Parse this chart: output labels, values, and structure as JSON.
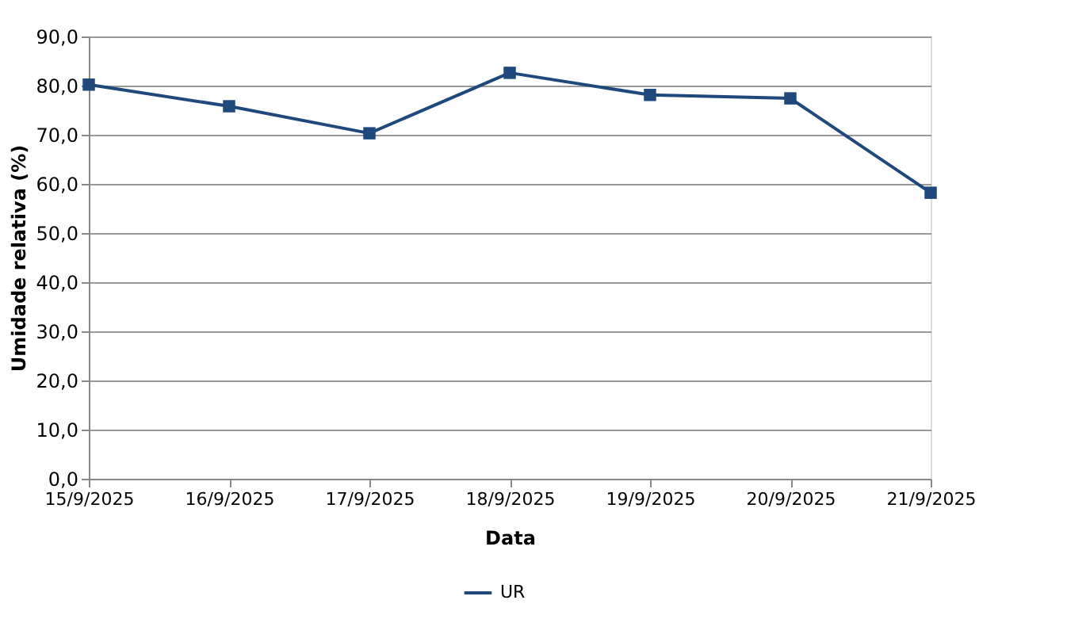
{
  "chart_data": {
    "type": "line",
    "xlabel": "Data",
    "ylabel": "Umidade relativa (%)",
    "categories": [
      "15/9/2025",
      "16/9/2025",
      "17/9/2025",
      "18/9/2025",
      "19/9/2025",
      "20/9/2025",
      "21/9/2025"
    ],
    "series": [
      {
        "name": "UR",
        "color": "#1f497d",
        "values": [
          80.2,
          75.8,
          70.3,
          82.6,
          78.1,
          77.4,
          58.2
        ]
      }
    ],
    "ylim": [
      0,
      90
    ],
    "yticks": [
      {
        "value": 0,
        "label": "0,0"
      },
      {
        "value": 10,
        "label": "10,0"
      },
      {
        "value": 20,
        "label": "20,0"
      },
      {
        "value": 30,
        "label": "30,0"
      },
      {
        "value": 40,
        "label": "40,0"
      },
      {
        "value": 50,
        "label": "50,0"
      },
      {
        "value": 60,
        "label": "60,0"
      },
      {
        "value": 70,
        "label": "70,0"
      },
      {
        "value": 80,
        "label": "80,0"
      },
      {
        "value": 90,
        "label": "90,0"
      }
    ],
    "grid": "y",
    "legend": "bottom",
    "marker": "square",
    "line_style": "solid"
  }
}
